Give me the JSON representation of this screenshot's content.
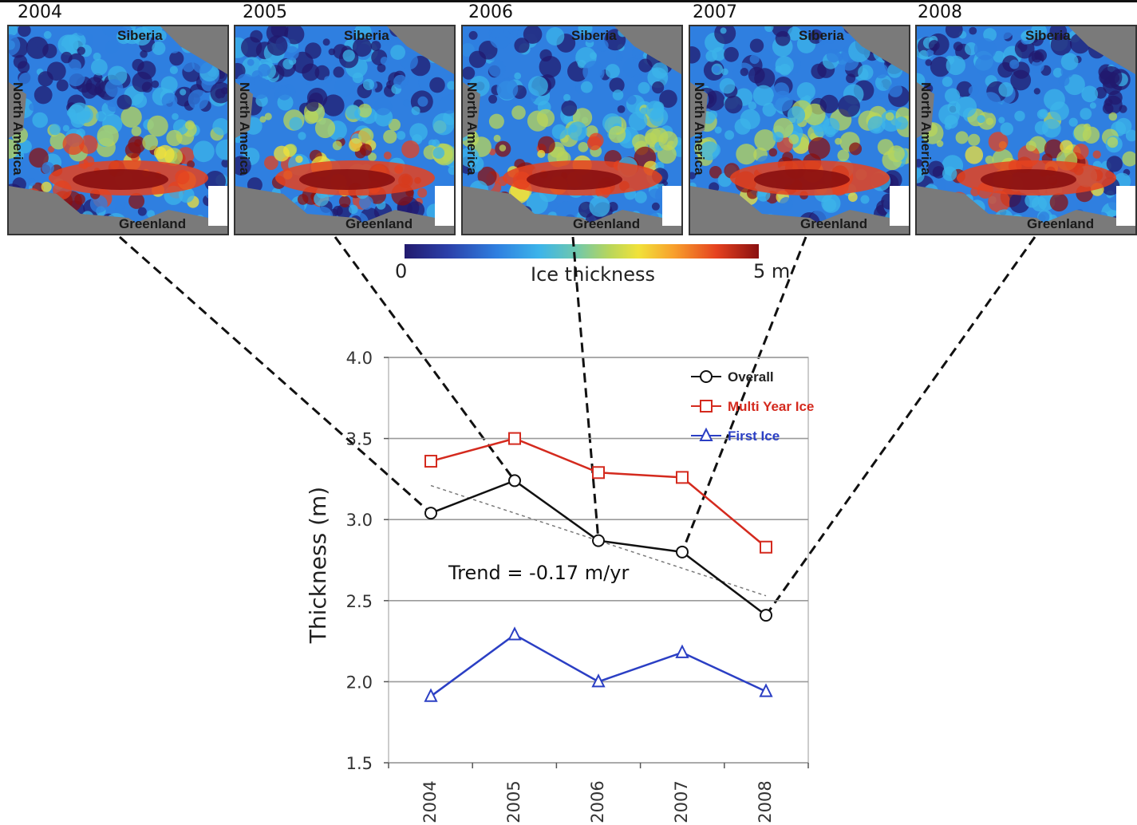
{
  "panels": [
    {
      "year": "2004",
      "siberia": "Siberia",
      "greenland": "Greenland",
      "north_america": "North America"
    },
    {
      "year": "2005",
      "siberia": "Siberia",
      "greenland": "Greenland",
      "north_america": "North America"
    },
    {
      "year": "2006",
      "siberia": "Siberia",
      "greenland": "Greenland",
      "north_america": "North America"
    },
    {
      "year": "2007",
      "siberia": "Siberia",
      "greenland": "Greenland",
      "north_america": "North America"
    },
    {
      "year": "2008",
      "siberia": "Siberia",
      "greenland": "Greenland",
      "north_america": "North America"
    }
  ],
  "colorbar": {
    "min_label": "0",
    "max_label": "5 m",
    "title": "Ice thickness",
    "colors": [
      "#221a6e",
      "#2f7fe0",
      "#3cb4ea",
      "#b9d65a",
      "#f1e23a",
      "#e5421f",
      "#8a1010"
    ]
  },
  "chart_data": {
    "type": "line",
    "title": "",
    "xlabel": "",
    "ylabel": "Thickness (m)",
    "categories": [
      "2004",
      "2005",
      "2006",
      "2007",
      "2008"
    ],
    "ylim": [
      1.5,
      4.0
    ],
    "yticks": [
      "1.5",
      "2.0",
      "2.5",
      "3.0",
      "3.5",
      "4.0"
    ],
    "grid": true,
    "legend_position": "top-right",
    "series": [
      {
        "name": "Overall",
        "values": [
          3.04,
          3.24,
          2.87,
          2.8,
          2.41
        ],
        "color": "#111111",
        "marker": "circle"
      },
      {
        "name": "Multi Year Ice",
        "values": [
          3.36,
          3.5,
          3.29,
          3.26,
          2.83
        ],
        "color": "#d42a1e",
        "marker": "square"
      },
      {
        "name": "First Ice",
        "values": [
          1.91,
          2.29,
          2.0,
          2.18,
          1.94
        ],
        "color": "#2b3fc4",
        "marker": "triangle"
      }
    ],
    "trend": {
      "values": [
        3.21,
        2.53
      ],
      "label": "Trend = -0.17 m/yr"
    }
  }
}
